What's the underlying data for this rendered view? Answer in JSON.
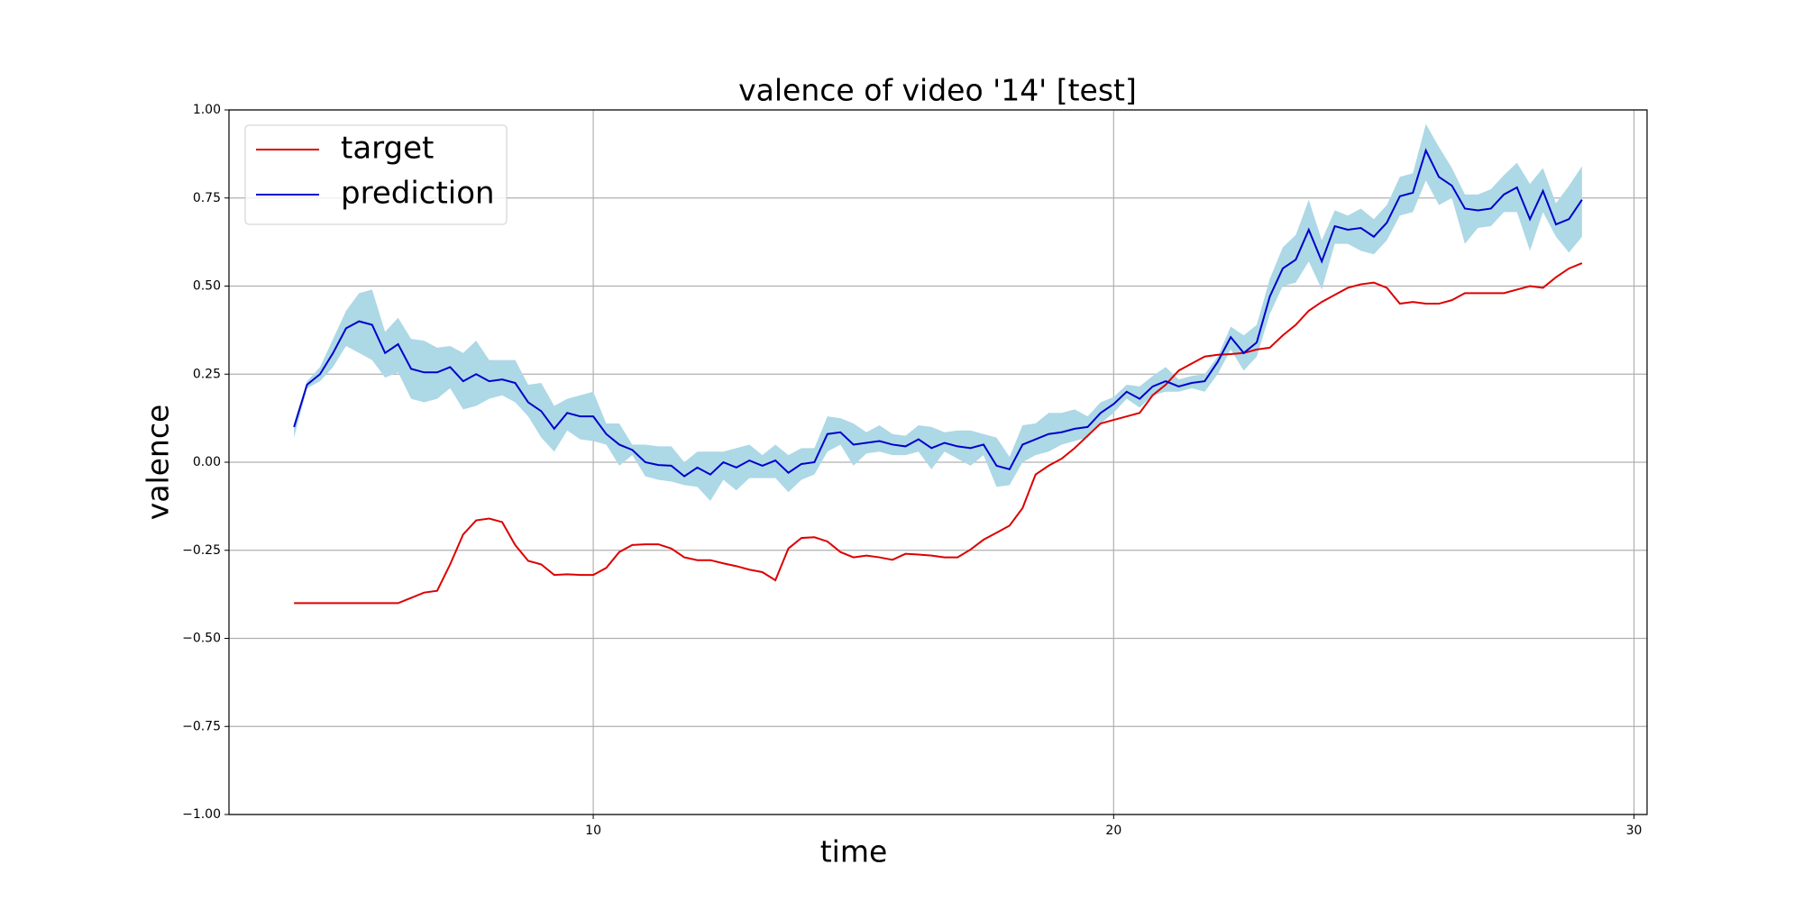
{
  "chart_data": {
    "type": "line",
    "title": "valence of video '14' [test]",
    "x_label": "time",
    "y_label": "valence",
    "x": [
      4.25,
      4.5,
      4.75,
      5.0,
      5.25,
      5.5,
      5.75,
      6.0,
      6.25,
      6.5,
      6.75,
      7.0,
      7.25,
      7.5,
      7.75,
      8.0,
      8.25,
      8.5,
      8.75,
      9.0,
      9.25,
      9.5,
      9.75,
      10.0,
      10.25,
      10.5,
      10.75,
      11.0,
      11.25,
      11.5,
      11.75,
      12.0,
      12.25,
      12.5,
      12.75,
      13.0,
      13.25,
      13.5,
      13.75,
      14.0,
      14.25,
      14.5,
      14.75,
      15.0,
      15.25,
      15.5,
      15.75,
      16.0,
      16.25,
      16.5,
      16.75,
      17.0,
      17.25,
      17.5,
      17.75,
      18.0,
      18.25,
      18.5,
      18.75,
      19.0,
      19.25,
      19.5,
      19.75,
      20.0,
      20.25,
      20.5,
      20.75,
      21.0,
      21.25,
      21.5,
      21.75,
      22.0,
      22.25,
      22.5,
      22.75,
      23.0,
      23.25,
      23.5,
      23.75,
      24.0,
      24.25,
      24.5,
      24.75,
      25.0,
      25.25,
      25.5,
      25.75,
      26.0,
      26.25,
      26.5,
      26.75,
      27.0,
      27.25,
      27.5,
      27.75,
      28.0,
      28.25,
      28.5,
      28.75,
      29.0
    ],
    "series": [
      {
        "name": "target",
        "color": "#dd0000",
        "values": [
          -0.4,
          -0.4,
          -0.4,
          -0.4,
          -0.4,
          -0.4,
          -0.4,
          -0.4,
          -0.4,
          -0.385,
          -0.37,
          -0.365,
          -0.29,
          -0.205,
          -0.165,
          -0.16,
          -0.17,
          -0.235,
          -0.28,
          -0.29,
          -0.32,
          -0.318,
          -0.32,
          -0.32,
          -0.3,
          -0.255,
          -0.235,
          -0.233,
          -0.233,
          -0.245,
          -0.27,
          -0.278,
          -0.278,
          -0.287,
          -0.295,
          -0.305,
          -0.312,
          -0.335,
          -0.245,
          -0.215,
          -0.213,
          -0.225,
          -0.255,
          -0.27,
          -0.265,
          -0.27,
          -0.277,
          -0.26,
          -0.262,
          -0.265,
          -0.27,
          -0.27,
          -0.248,
          -0.22,
          -0.2,
          -0.18,
          -0.13,
          -0.035,
          -0.01,
          0.01,
          0.04,
          0.075,
          0.11,
          0.12,
          0.13,
          0.14,
          0.19,
          0.22,
          0.26,
          0.28,
          0.3,
          0.305,
          0.307,
          0.31,
          0.32,
          0.325,
          0.36,
          0.39,
          0.43,
          0.455,
          0.475,
          0.495,
          0.505,
          0.51,
          0.495,
          0.45,
          0.455,
          0.45,
          0.45,
          0.46,
          0.48,
          0.48,
          0.48,
          0.48,
          0.49,
          0.5,
          0.495,
          0.525,
          0.55,
          0.565
        ]
      },
      {
        "name": "prediction",
        "color": "#0000cc",
        "values": [
          0.1,
          0.22,
          0.25,
          0.31,
          0.38,
          0.4,
          0.39,
          0.31,
          0.335,
          0.265,
          0.255,
          0.255,
          0.27,
          0.23,
          0.25,
          0.23,
          0.235,
          0.225,
          0.17,
          0.145,
          0.095,
          0.14,
          0.13,
          0.13,
          0.08,
          0.05,
          0.035,
          0.0,
          -0.008,
          -0.01,
          -0.04,
          -0.015,
          -0.035,
          0.0,
          -0.015,
          0.005,
          -0.01,
          0.005,
          -0.03,
          -0.005,
          0.0,
          0.08,
          0.085,
          0.05,
          0.055,
          0.06,
          0.05,
          0.045,
          0.065,
          0.04,
          0.055,
          0.045,
          0.04,
          0.05,
          -0.01,
          -0.02,
          0.05,
          0.065,
          0.08,
          0.085,
          0.095,
          0.1,
          0.14,
          0.165,
          0.2,
          0.18,
          0.215,
          0.23,
          0.215,
          0.225,
          0.23,
          0.285,
          0.355,
          0.31,
          0.34,
          0.47,
          0.55,
          0.575,
          0.66,
          0.57,
          0.67,
          0.66,
          0.665,
          0.64,
          0.68,
          0.755,
          0.765,
          0.885,
          0.81,
          0.785,
          0.72,
          0.715,
          0.72,
          0.76,
          0.78,
          0.69,
          0.77,
          0.675,
          0.69,
          0.745
        ],
        "band": {
          "color": "#add8e6",
          "upper": [
            0.11,
            0.23,
            0.27,
            0.35,
            0.43,
            0.48,
            0.49,
            0.37,
            0.41,
            0.35,
            0.345,
            0.325,
            0.33,
            0.31,
            0.345,
            0.29,
            0.29,
            0.29,
            0.22,
            0.225,
            0.16,
            0.18,
            0.19,
            0.2,
            0.11,
            0.11,
            0.05,
            0.05,
            0.045,
            0.045,
            0.0,
            0.03,
            0.03,
            0.03,
            0.04,
            0.05,
            0.02,
            0.05,
            0.02,
            0.04,
            0.04,
            0.13,
            0.125,
            0.11,
            0.085,
            0.105,
            0.08,
            0.075,
            0.105,
            0.1,
            0.085,
            0.09,
            0.09,
            0.08,
            0.07,
            0.015,
            0.105,
            0.11,
            0.14,
            0.14,
            0.15,
            0.13,
            0.17,
            0.185,
            0.22,
            0.215,
            0.245,
            0.27,
            0.235,
            0.245,
            0.25,
            0.3,
            0.385,
            0.36,
            0.39,
            0.52,
            0.61,
            0.645,
            0.745,
            0.63,
            0.715,
            0.7,
            0.72,
            0.69,
            0.73,
            0.81,
            0.82,
            0.96,
            0.895,
            0.835,
            0.76,
            0.76,
            0.775,
            0.815,
            0.85,
            0.79,
            0.835,
            0.735,
            0.785,
            0.84
          ],
          "lower": [
            0.07,
            0.21,
            0.23,
            0.27,
            0.33,
            0.31,
            0.29,
            0.24,
            0.255,
            0.18,
            0.17,
            0.18,
            0.21,
            0.15,
            0.16,
            0.18,
            0.19,
            0.17,
            0.13,
            0.07,
            0.03,
            0.09,
            0.065,
            0.06,
            0.05,
            -0.01,
            0.02,
            -0.04,
            -0.05,
            -0.055,
            -0.065,
            -0.07,
            -0.11,
            -0.05,
            -0.08,
            -0.045,
            -0.045,
            -0.045,
            -0.085,
            -0.05,
            -0.035,
            0.03,
            0.05,
            -0.01,
            0.025,
            0.03,
            0.02,
            0.02,
            0.03,
            -0.02,
            0.03,
            0.01,
            -0.01,
            0.02,
            -0.07,
            -0.065,
            0.0,
            0.02,
            0.03,
            0.05,
            0.06,
            0.07,
            0.11,
            0.14,
            0.18,
            0.155,
            0.19,
            0.2,
            0.2,
            0.21,
            0.2,
            0.25,
            0.32,
            0.26,
            0.3,
            0.42,
            0.5,
            0.51,
            0.57,
            0.49,
            0.62,
            0.62,
            0.6,
            0.59,
            0.63,
            0.7,
            0.71,
            0.8,
            0.73,
            0.75,
            0.62,
            0.665,
            0.67,
            0.71,
            0.71,
            0.6,
            0.71,
            0.64,
            0.595,
            0.64
          ]
        }
      }
    ],
    "xlim": [
      3.0,
      30.25
    ],
    "ylim": [
      -1,
      1
    ],
    "xticks": [
      10,
      20,
      30
    ],
    "yticks": [
      {
        "value": -1,
        "label": "−1.00"
      },
      {
        "value": -0.75,
        "label": "−0.75"
      },
      {
        "value": -0.5,
        "label": "−0.50"
      },
      {
        "value": -0.25,
        "label": "−0.25"
      },
      {
        "value": 0,
        "label": "0.00"
      },
      {
        "value": 0.25,
        "label": "0.25"
      },
      {
        "value": 0.5,
        "label": "0.50"
      },
      {
        "value": 0.75,
        "label": "0.75"
      },
      {
        "value": 1,
        "label": "1.00"
      }
    ],
    "grid": true,
    "legend": "upper-left"
  }
}
